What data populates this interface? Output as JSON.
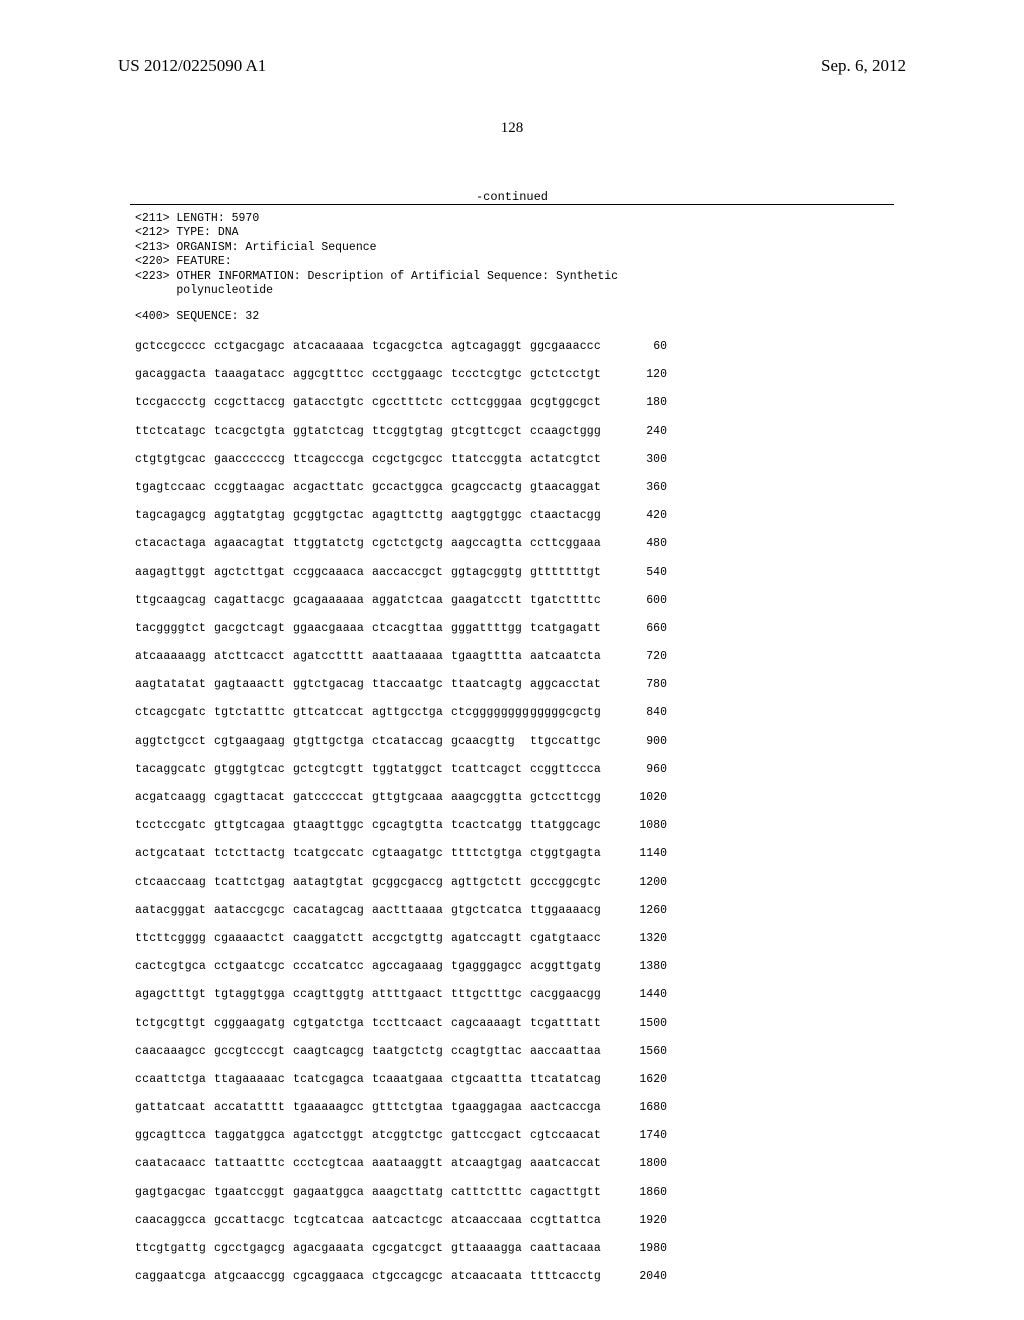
{
  "header": {
    "pub_number": "US 2012/0225090 A1",
    "pub_date": "Sep. 6, 2012",
    "page": "128",
    "continued": "-continued"
  },
  "metadata": {
    "line1": "<211> LENGTH: 5970",
    "line2": "<212> TYPE: DNA",
    "line3": "<213> ORGANISM: Artificial Sequence",
    "line4": "<220> FEATURE:",
    "line5": "<223> OTHER INFORMATION: Description of Artificial Sequence: Synthetic",
    "line6": "      polynucleotide"
  },
  "sequence_id": "<400> SEQUENCE: 32",
  "rows": [
    {
      "b": [
        "gctccgcccc",
        "cctgacgagc",
        "atcacaaaaa",
        "tcgacgctca",
        "agtcagaggt",
        "ggcgaaaccc"
      ],
      "p": "60"
    },
    {
      "b": [
        "gacaggacta",
        "taaagatacc",
        "aggcgtttcc",
        "ccctggaagc",
        "tccctcgtgc",
        "gctctcctgt"
      ],
      "p": "120"
    },
    {
      "b": [
        "tccgaccctg",
        "ccgcttaccg",
        "gatacctgtc",
        "cgcctttctc",
        "ccttcgggaa",
        "gcgtggcgct"
      ],
      "p": "180"
    },
    {
      "b": [
        "ttctcatagc",
        "tcacgctgta",
        "ggtatctcag",
        "ttcggtgtag",
        "gtcgttcgct",
        "ccaagctggg"
      ],
      "p": "240"
    },
    {
      "b": [
        "ctgtgtgcac",
        "gaaccccccg",
        "ttcagcccga",
        "ccgctgcgcc",
        "ttatccggta",
        "actatcgtct"
      ],
      "p": "300"
    },
    {
      "b": [
        "tgagtccaac",
        "ccggtaagac",
        "acgacttatc",
        "gccactggca",
        "gcagccactg",
        "gtaacaggat"
      ],
      "p": "360"
    },
    {
      "b": [
        "tagcagagcg",
        "aggtatgtag",
        "gcggtgctac",
        "agagttcttg",
        "aagtggtggc",
        "ctaactacgg"
      ],
      "p": "420"
    },
    {
      "b": [
        "ctacactaga",
        "agaacagtat",
        "ttggtatctg",
        "cgctctgctg",
        "aagccagtta",
        "ccttcggaaa"
      ],
      "p": "480"
    },
    {
      "b": [
        "aagagttggt",
        "agctcttgat",
        "ccggcaaaca",
        "aaccaccgct",
        "ggtagcggtg",
        "gtttttttgt"
      ],
      "p": "540"
    },
    {
      "b": [
        "ttgcaagcag",
        "cagattacgc",
        "gcagaaaaaa",
        "aggatctcaa",
        "gaagatcctt",
        "tgatcttttc"
      ],
      "p": "600"
    },
    {
      "b": [
        "tacggggtct",
        "gacgctcagt",
        "ggaacgaaaa",
        "ctcacgttaa",
        "gggattttgg",
        "tcatgagatt"
      ],
      "p": "660"
    },
    {
      "b": [
        "atcaaaaagg",
        "atcttcacct",
        "agatcctttt",
        "aaattaaaaa",
        "tgaagtttta",
        "aatcaatcta"
      ],
      "p": "720"
    },
    {
      "b": [
        "aagtatatat",
        "gagtaaactt",
        "ggtctgacag",
        "ttaccaatgc",
        "ttaatcagtg",
        "aggcacctat"
      ],
      "p": "780"
    },
    {
      "b": [
        "ctcagcgatc",
        "tgtctatttc",
        "gttcatccat",
        "agttgcctga",
        "ctcgggggggg",
        "gggggcgctg"
      ],
      "p": "840"
    },
    {
      "b": [
        "aggtctgcct",
        "cgtgaagaag",
        "gtgttgctga",
        "ctcataccag",
        "gcaacgttg",
        "ttgccattgc"
      ],
      "p": "900"
    },
    {
      "b": [
        "tacaggcatc",
        "gtggtgtcac",
        "gctcgtcgtt",
        "tggtatggct",
        "tcattcagct",
        "ccggttccca"
      ],
      "p": "960"
    },
    {
      "b": [
        "acgatcaagg",
        "cgagttacat",
        "gatcccccat",
        "gttgtgcaaa",
        "aaagcggtta",
        "gctccttcgg"
      ],
      "p": "1020"
    },
    {
      "b": [
        "tcctccgatc",
        "gttgtcagaa",
        "gtaagttggc",
        "cgcagtgtta",
        "tcactcatgg",
        "ttatggcagc"
      ],
      "p": "1080"
    },
    {
      "b": [
        "actgcataat",
        "tctcttactg",
        "tcatgccatc",
        "cgtaagatgc",
        "ttttctgtga",
        "ctggtgagta"
      ],
      "p": "1140"
    },
    {
      "b": [
        "ctcaaccaag",
        "tcattctgag",
        "aatagtgtat",
        "gcggcgaccg",
        "agttgctctt",
        "gcccggcgtc"
      ],
      "p": "1200"
    },
    {
      "b": [
        "aatacgggat",
        "aataccgcgc",
        "cacatagcag",
        "aactttaaaa",
        "gtgctcatca",
        "ttggaaaacg"
      ],
      "p": "1260"
    },
    {
      "b": [
        "ttcttcgggg",
        "cgaaaactct",
        "caaggatctt",
        "accgctgttg",
        "agatccagtt",
        "cgatgtaacc"
      ],
      "p": "1320"
    },
    {
      "b": [
        "cactcgtgca",
        "cctgaatcgc",
        "cccatcatcc",
        "agccagaaag",
        "tgagggagcc",
        "acggttgatg"
      ],
      "p": "1380"
    },
    {
      "b": [
        "agagctttgt",
        "tgtaggtgga",
        "ccagttggtg",
        "attttgaact",
        "tttgctttgc",
        "cacggaacgg"
      ],
      "p": "1440"
    },
    {
      "b": [
        "tctgcgttgt",
        "cgggaagatg",
        "cgtgatctga",
        "tccttcaact",
        "cagcaaaagt",
        "tcgatttatt"
      ],
      "p": "1500"
    },
    {
      "b": [
        "caacaaagcc",
        "gccgtcccgt",
        "caagtcagcg",
        "taatgctctg",
        "ccagtgttac",
        "aaccaattaa"
      ],
      "p": "1560"
    },
    {
      "b": [
        "ccaattctga",
        "ttagaaaaac",
        "tcatcgagca",
        "tcaaatgaaa",
        "ctgcaattta",
        "ttcatatcag"
      ],
      "p": "1620"
    },
    {
      "b": [
        "gattatcaat",
        "accatatttt",
        "tgaaaaagcc",
        "gtttctgtaa",
        "tgaaggagaa",
        "aactcaccga"
      ],
      "p": "1680"
    },
    {
      "b": [
        "ggcagttcca",
        "taggatggca",
        "agatcctggt",
        "atcggtctgc",
        "gattccgact",
        "cgtccaacat"
      ],
      "p": "1740"
    },
    {
      "b": [
        "caatacaacc",
        "tattaatttc",
        "ccctcgtcaa",
        "aaataaggtt",
        "atcaagtgag",
        "aaatcaccat"
      ],
      "p": "1800"
    },
    {
      "b": [
        "gagtgacgac",
        "tgaatccggt",
        "gagaatggca",
        "aaagcttatg",
        "catttctttc",
        "cagacttgtt"
      ],
      "p": "1860"
    },
    {
      "b": [
        "caacaggcca",
        "gccattacgc",
        "tcgtcatcaa",
        "aatcactcgc",
        "atcaaccaaa",
        "ccgttattca"
      ],
      "p": "1920"
    },
    {
      "b": [
        "ttcgtgattg",
        "cgcctgagcg",
        "agacgaaata",
        "cgcgatcgct",
        "gttaaaagga",
        "caattacaaa"
      ],
      "p": "1980"
    },
    {
      "b": [
        "caggaatcga",
        "atgcaaccgg",
        "cgcaggaaca",
        "ctgccagcgc",
        "atcaacaata",
        "ttttcacctg"
      ],
      "p": "2040"
    }
  ],
  "style": {
    "font_mono": "Courier New",
    "font_serif": "Times New Roman",
    "bg": "#ffffff",
    "fg": "#000000",
    "header_fontsize": 17,
    "body_fontsize": 11.5,
    "page_fontsize": 15,
    "rule_width": 1.5
  }
}
